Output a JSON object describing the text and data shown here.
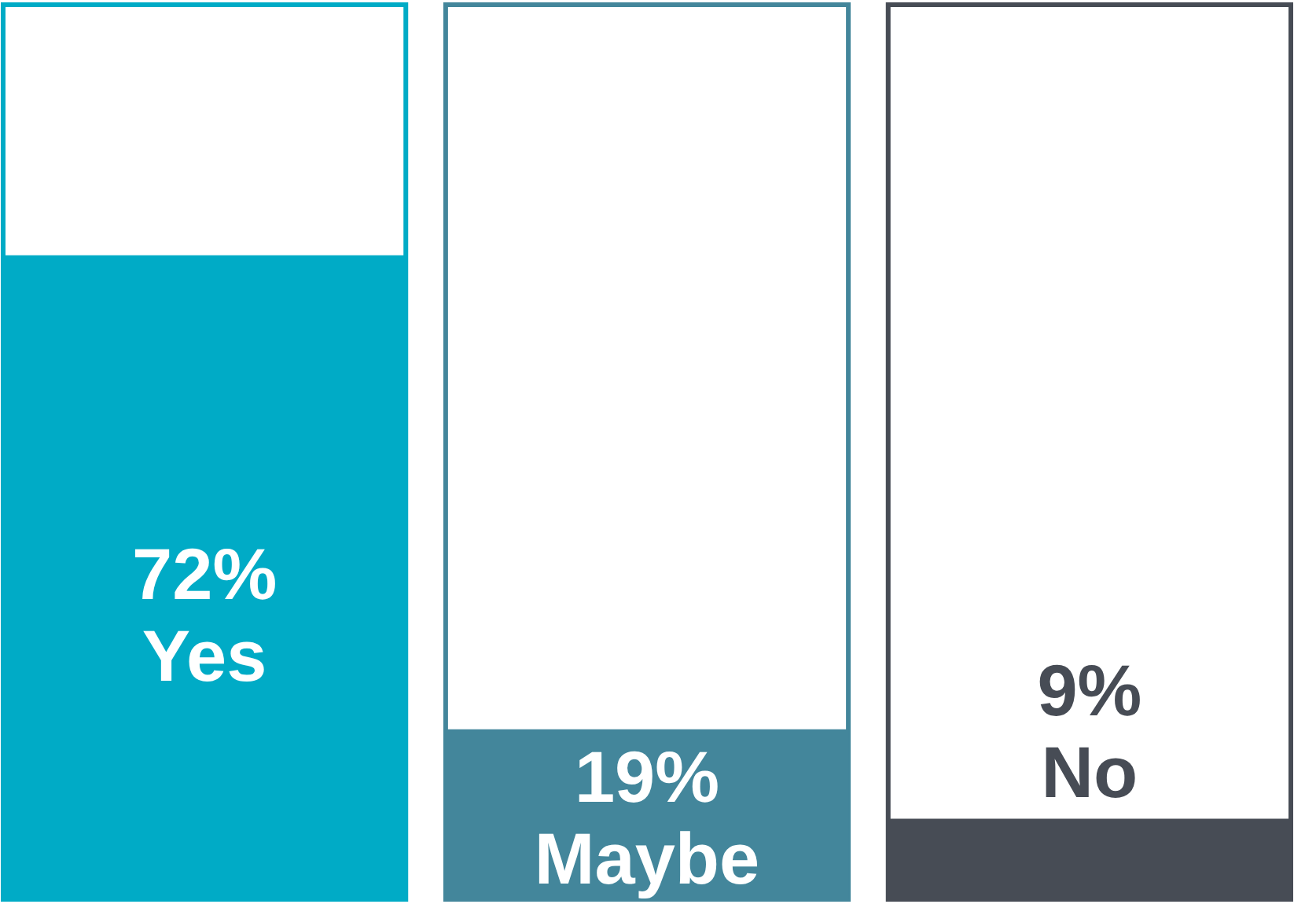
{
  "chart_data": {
    "type": "bar",
    "categories": [
      "Yes",
      "Maybe",
      "No"
    ],
    "values": [
      72,
      19,
      9
    ],
    "colors": [
      "#00abc6",
      "#43869b",
      "#474c55"
    ],
    "value_labels": [
      "72%",
      "19%",
      "9%"
    ],
    "ylim": [
      0,
      100
    ],
    "tick_labels": false
  }
}
